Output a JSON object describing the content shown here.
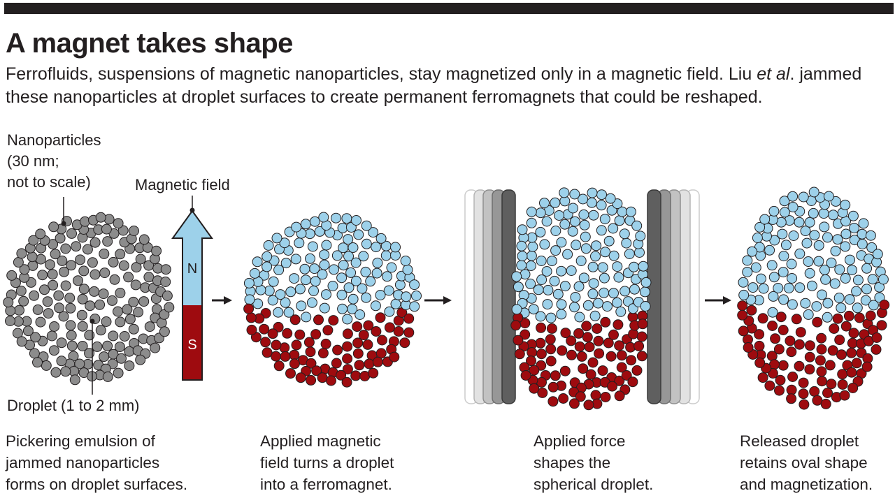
{
  "title": "A magnet takes shape",
  "subtitle": {
    "part1": "Ferrofluids, suspensions of magnetic nanoparticles, stay magnetized only in a magnetic field. Liu ",
    "italic": "et al",
    "part2": ". jammed these nanoparticles at droplet surfaces to create permanent ferromagnets that could be reshaped."
  },
  "labels": {
    "nanoparticles": [
      "Nanoparticles",
      "(30 nm;",
      "not to scale)"
    ],
    "magnetic_field": "Magnetic field",
    "north": "N",
    "south": "S",
    "droplet": "Droplet (1 to 2 mm)"
  },
  "captions": [
    [
      "Pickering emulsion of",
      "jammed nanoparticles",
      "forms on droplet surfaces."
    ],
    [
      "Applied magnetic",
      "field turns a droplet",
      "into a ferromagnet."
    ],
    [
      "Applied force",
      "shapes the",
      "spherical droplet."
    ],
    [
      "Released droplet",
      "retains oval shape",
      "and magnetization."
    ]
  ],
  "colors": {
    "gray_particle": "#8c8c8c",
    "blue_particle": "#9dd1ea",
    "red_particle": "#9e0b0f",
    "arrow_blue": "#9dd1ea",
    "arrow_red": "#9e0b0f",
    "outline": "#231f20"
  }
}
